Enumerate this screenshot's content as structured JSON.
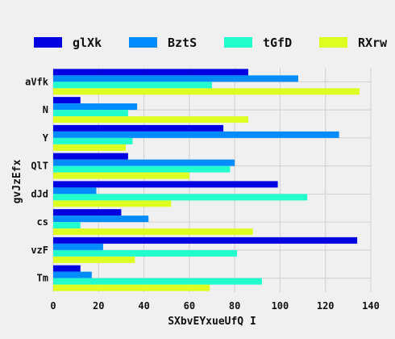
{
  "chart_data": {
    "type": "bar",
    "orientation": "horizontal",
    "categories": [
      "aVfk",
      "N",
      "Y",
      "QlT",
      "dJd",
      "cs",
      "vzF",
      "Tm"
    ],
    "series": [
      {
        "name": "glXk",
        "color": "#0000e0",
        "values": [
          86,
          12,
          75,
          33,
          99,
          30,
          134,
          12
        ]
      },
      {
        "name": "BztS",
        "color": "#008cff",
        "values": [
          108,
          37,
          126,
          80,
          19,
          42,
          22,
          17
        ]
      },
      {
        "name": "tGfD",
        "color": "#22ffcc",
        "values": [
          70,
          33,
          35,
          78,
          112,
          12,
          81,
          92
        ]
      },
      {
        "name": "RXrw",
        "color": "#ddff22",
        "values": [
          135,
          86,
          32,
          60,
          52,
          88,
          36,
          69
        ]
      }
    ],
    "xlabel": "SXbvEYxueUfQ I",
    "ylabel": "gvJzEfx",
    "xlim": [
      0,
      140
    ],
    "xticks": [
      0,
      20,
      40,
      60,
      80,
      100,
      120,
      140
    ],
    "grid": true,
    "legend": "top"
  }
}
